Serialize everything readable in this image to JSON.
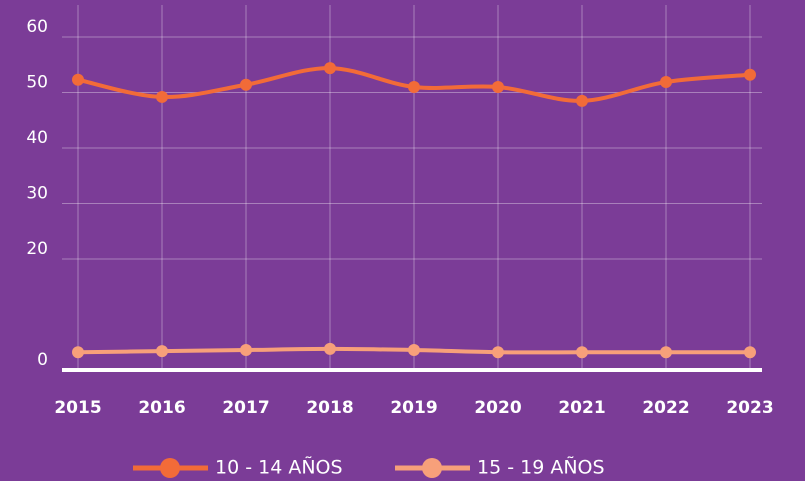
{
  "chart_data": {
    "type": "line",
    "x": [
      "2015",
      "2016",
      "2017",
      "2018",
      "2019",
      "2020",
      "2021",
      "2022",
      "2023"
    ],
    "series": [
      {
        "name": "10 - 14 AÑOS",
        "color": "#f26b38",
        "values": [
          52.3,
          49.2,
          51.4,
          54.4,
          51,
          51,
          48.5,
          51.9,
          53.2
        ]
      },
      {
        "name": "15 - 19 AÑOS",
        "color": "#f7a07a",
        "values": [
          3.2,
          3.4,
          3.6,
          3.8,
          3.6,
          3.2,
          3.2,
          3.2,
          3.2
        ]
      }
    ],
    "ylim": [
      0,
      60
    ],
    "yticks": [
      0,
      20,
      30,
      40,
      50,
      60
    ],
    "grid": true,
    "legend": "bottom"
  }
}
